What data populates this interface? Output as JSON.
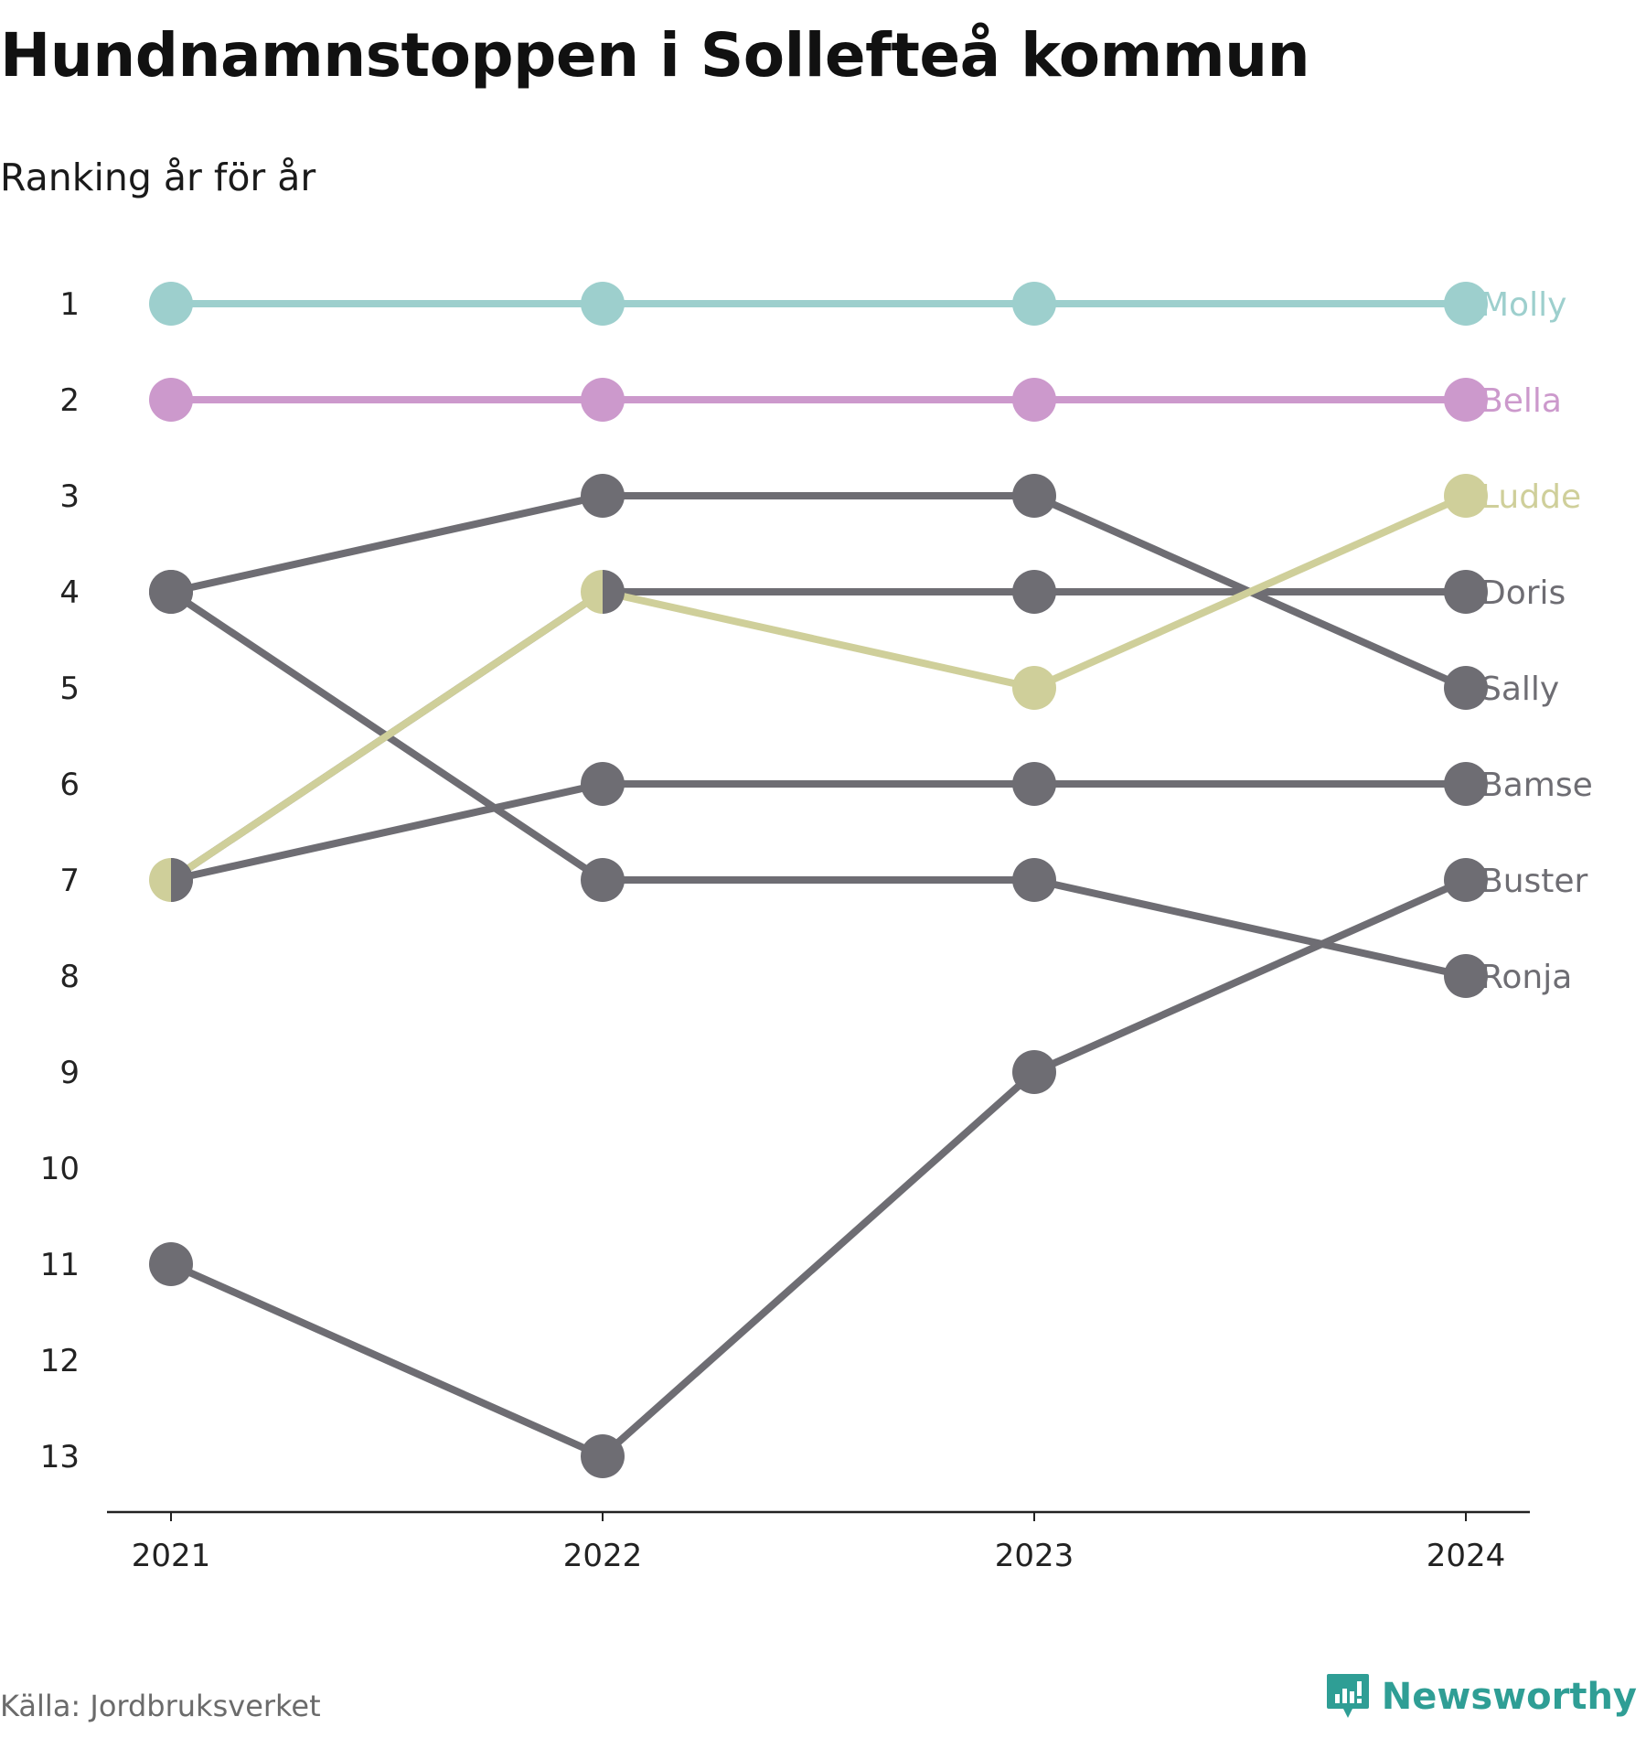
{
  "title": "Hundnamnstoppen i Sollefteå kommun",
  "subtitle": "Ranking år för år",
  "source": "Källa: Jordbruksverket",
  "brand": {
    "name": "Newsworthy",
    "icon": "newsworthy-logo-icon",
    "color": "#2f9e95"
  },
  "chart_data": {
    "type": "line",
    "chart_style": "bump",
    "x": [
      "2021",
      "2022",
      "2023",
      "2024"
    ],
    "y_ticks": [
      "1",
      "2",
      "3",
      "4",
      "5",
      "6",
      "7",
      "8",
      "9",
      "10",
      "11",
      "12",
      "13"
    ],
    "y_reversed": true,
    "ylim": [
      1,
      13
    ],
    "grid": false,
    "legend": "end-of-line labels",
    "series": [
      {
        "name": "Molly",
        "values": [
          1,
          1,
          1,
          1
        ],
        "color": "#9dcfcd"
      },
      {
        "name": "Bella",
        "values": [
          2,
          2,
          2,
          2
        ],
        "color": "#cc99cc"
      },
      {
        "name": "Ludde",
        "values": [
          7,
          4,
          5,
          3
        ],
        "color": "#cfcf9a"
      },
      {
        "name": "Doris",
        "values": [
          7,
          4,
          4,
          4
        ],
        "color": "#6e6d73"
      },
      {
        "name": "Sally",
        "values": [
          4,
          3,
          3,
          5
        ],
        "color": "#6e6d73"
      },
      {
        "name": "Bamse",
        "values": [
          7,
          6,
          6,
          6
        ],
        "color": "#6e6d73"
      },
      {
        "name": "Buster",
        "values": [
          11,
          13,
          9,
          7
        ],
        "color": "#6e6d73"
      },
      {
        "name": "Ronja",
        "values": [
          4,
          7,
          7,
          8
        ],
        "color": "#6e6d73"
      }
    ]
  }
}
